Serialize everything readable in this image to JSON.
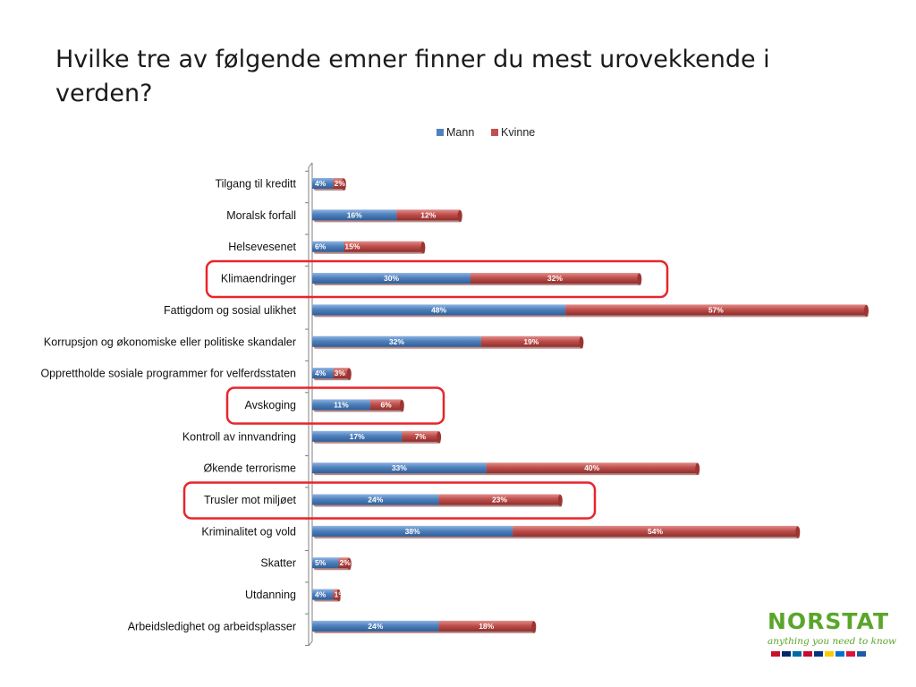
{
  "title": "Hvilke tre av følgende emner finner du mest urovekkende i verden?",
  "colors": {
    "mann": "#4f81bd",
    "kvinne": "#c0504d",
    "highlight": "#e8252a",
    "brand": "#5aa62b"
  },
  "logo": {
    "text": "NORSTAT",
    "tagline": "anything you need to know"
  },
  "chart_data": {
    "type": "bar",
    "orientation": "horizontal",
    "stacked": true,
    "legend_position": "top",
    "categories": [
      "Tilgang til kreditt",
      "Moralsk forfall",
      "Helsevesenet",
      "Klimaendringer",
      "Fattigdom og sosial ulikhet",
      "Korrupsjon og økonomiske eller politiske skandaler",
      "Opprettholde sosiale programmer for velferdsstaten",
      "Avskoging",
      "Kontroll av innvandring",
      "Økende terrorisme",
      "Trusler mot miljøet",
      "Kriminalitet og vold",
      "Skatter",
      "Utdanning",
      "Arbeidsledighet og arbeidsplasser"
    ],
    "series": [
      {
        "name": "Mann",
        "values": [
          4,
          16,
          6,
          30,
          48,
          32,
          4,
          11,
          17,
          33,
          24,
          38,
          5,
          4,
          24
        ],
        "labels": [
          "4%",
          "16%",
          "6%",
          "30%",
          "48%",
          "32%",
          "4%",
          "11%",
          "17%",
          "33%",
          "24%",
          "38%",
          "5%",
          "4%",
          "24%"
        ]
      },
      {
        "name": "Kvinne",
        "values": [
          2,
          12,
          15,
          32,
          57,
          19,
          3,
          6,
          7,
          40,
          23,
          54,
          2,
          1,
          18
        ],
        "labels": [
          "2%",
          "12%",
          "15%",
          "32%",
          "57%",
          "19%",
          "3%",
          "6%",
          "7%",
          "40%",
          "23%",
          "54%",
          "2%",
          "1%",
          "18%"
        ]
      }
    ],
    "highlighted": [
      "Klimaendringer",
      "Avskoging",
      "Trusler mot miljøet"
    ],
    "xlim": [
      0,
      105
    ],
    "grid": false
  }
}
